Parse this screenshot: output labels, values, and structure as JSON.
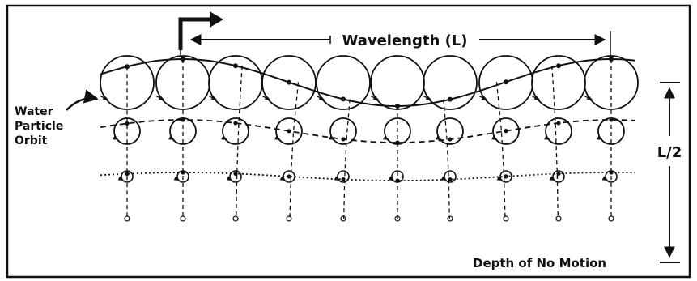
{
  "labels": {
    "wavelength": "Wavelength (L)",
    "orbit_line1": "Water",
    "orbit_line2": "Particle",
    "orbit_line3": "Orbit",
    "half_wavelength": "L/2",
    "depth": "Depth of No Motion"
  },
  "diagram": {
    "orbit_columns": 10,
    "orbit_levels": 4,
    "wave_direction": "right"
  },
  "colors": {
    "ink": "#111111",
    "background": "#ffffff"
  }
}
